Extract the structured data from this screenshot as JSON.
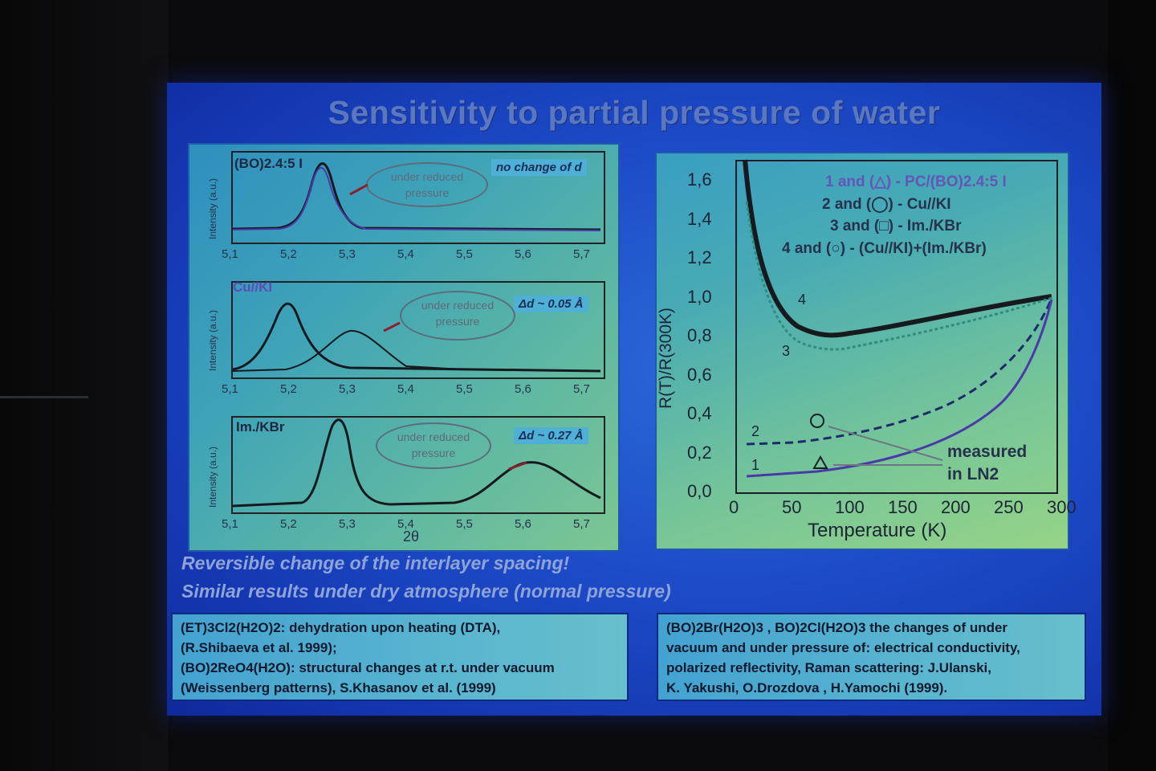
{
  "slide": {
    "title": "Sensitivity to partial pressure of water",
    "statement_1": "Reversible change of the interlayer spacing!",
    "statement_2": "Similar results under dry atmosphere (normal pressure)"
  },
  "xrd": {
    "y_axis_label": "Intensity (a.u.)",
    "x_axis_label": "2θ",
    "x_ticks": [
      "5,1",
      "5,2",
      "5,3",
      "5,4",
      "5,5",
      "5,6",
      "5,7"
    ],
    "plots": [
      {
        "label": "(BO)2.4:5 I",
        "badge": "no change of d",
        "note": "under reduced pressure"
      },
      {
        "label": "Cu//KI",
        "badge": "Δd ~ 0.05 Å",
        "note": "under reduced pressure"
      },
      {
        "label": "Im./KBr",
        "badge": "Δd ~ 0.27 Å",
        "note": "under reduced pressure"
      }
    ]
  },
  "rt_chart": {
    "y_axis_label": "R(T)/R(300K)",
    "x_axis_label": "Temperature (K)",
    "y_ticks": [
      "0,0",
      "0,2",
      "0,4",
      "0,6",
      "0,8",
      "1,0",
      "1,2",
      "1,4",
      "1,6"
    ],
    "x_ticks": [
      "0",
      "50",
      "100",
      "150",
      "200",
      "250",
      "300"
    ],
    "legend": [
      "1 and (△) - PC/(BO)2.4:5 I",
      "2 and (◯) - Cu//KI",
      "3 and (□) - Im./KBr",
      "4 and (○) - (Cu//KI)+(Im./KBr)"
    ],
    "curve_labels": [
      "1",
      "2",
      "3",
      "4"
    ],
    "note": "measured in LN2"
  },
  "refs": {
    "left": [
      "(ET)3Cl2(H2O)2: dehydration upon heating (DTA),",
      "(R.Shibaeva et al. 1999);",
      "(BO)2ReO4(H2O): structural changes at r.t. under vacuum",
      "(Weissenberg patterns), S.Khasanov et al. (1999)"
    ],
    "right": [
      "(BO)2Br(H2O)3 , BO)2Cl(H2O)3 the changes of under",
      "vacuum and under pressure of: electrical conductivity,",
      "polarized reflectivity, Raman scattering: J.Ulanski,",
      "K. Yakushi, O.Drozdova , H.Yamochi (1999)."
    ]
  },
  "colors": {
    "slide_blue": "#1d4bc8",
    "panel_teal": "#3ea3b8",
    "curve_dark": "#161a1f",
    "curve_purple": "#4a3aa8",
    "curve_teal": "#2f8d7e"
  }
}
